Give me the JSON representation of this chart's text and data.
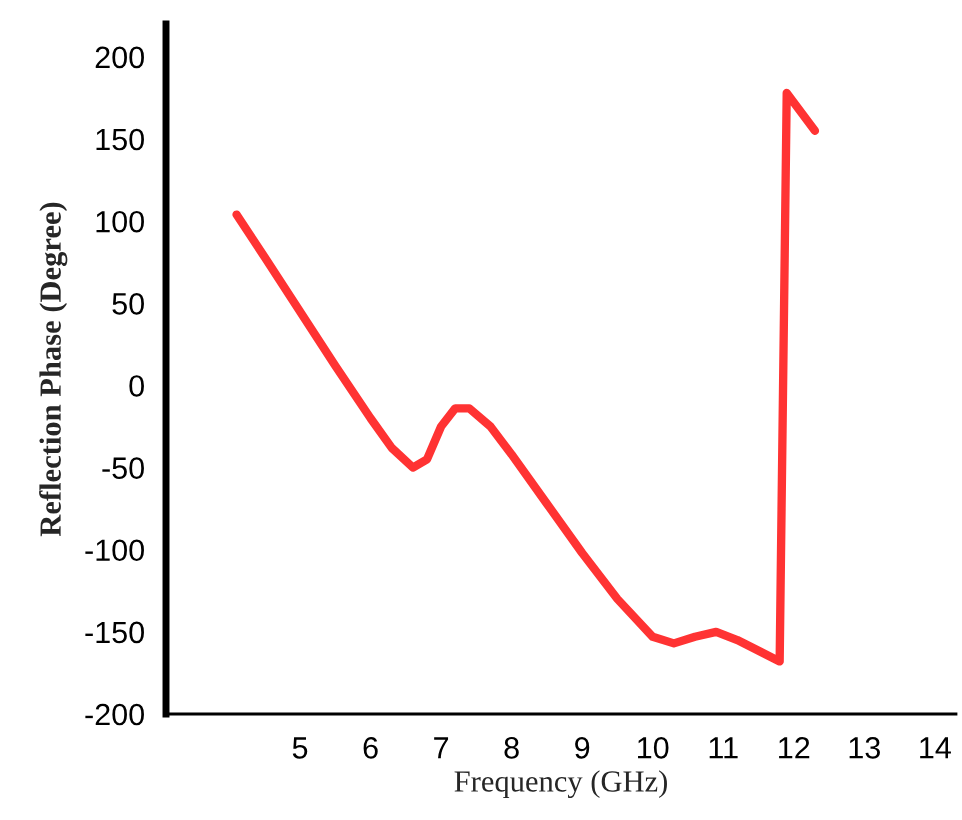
{
  "chart_data": {
    "type": "line",
    "xlabel": "Frequency (GHz)",
    "ylabel": "Reflection Phase (Degree)",
    "xlim": [
      3.1,
      14.3
    ],
    "xticks": [
      5,
      6,
      7,
      8,
      9,
      10,
      11,
      12,
      13,
      14
    ],
    "ylim": [
      -200,
      220
    ],
    "yticks": [
      -200,
      -150,
      -100,
      -50,
      0,
      50,
      100,
      150,
      200
    ],
    "grid": false,
    "legend": false,
    "marker": "none",
    "line_style": "solid",
    "series": [
      {
        "color": "#ff3333",
        "x": [
          4.1,
          4.5,
          5.0,
          5.5,
          6.0,
          6.3,
          6.6,
          6.8,
          7.0,
          7.2,
          7.4,
          7.7,
          8.0,
          8.5,
          9.0,
          9.5,
          10.0,
          10.3,
          10.6,
          10.9,
          11.2,
          11.8,
          11.9,
          12.3
        ],
        "values": [
          104,
          78,
          45,
          12,
          -20,
          -38,
          -50,
          -45,
          -25,
          -14,
          -14,
          -25,
          -42,
          -72,
          -102,
          -130,
          -153,
          -157,
          -153,
          -150,
          -155,
          -168,
          178,
          155
        ]
      }
    ]
  }
}
